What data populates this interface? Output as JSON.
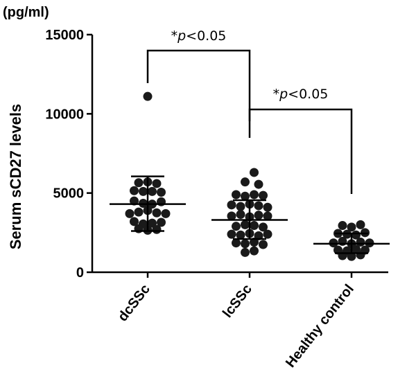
{
  "chart_data": {
    "type": "scatter",
    "unit_label": "(pg/ml)",
    "ylabel": "Serum sCD27  levels",
    "xlabel": "",
    "ylim": [
      0,
      15000
    ],
    "yticks": [
      0,
      5000,
      10000,
      15000
    ],
    "ytick_labels": [
      "0",
      "5000",
      "10000",
      "15000"
    ],
    "categories": [
      "dcSSc",
      "lcSSc",
      "Healthy control"
    ],
    "groups": [
      {
        "name": "dcSSc",
        "mean": 4300,
        "sd_upper": 6050,
        "sd_lower": 2600,
        "points": [
          {
            "offset": 0,
            "value": 11100
          },
          {
            "offset": -1,
            "value": 5650
          },
          {
            "offset": 0,
            "value": 5700
          },
          {
            "offset": 1,
            "value": 5600
          },
          {
            "offset": -1.5,
            "value": 5150
          },
          {
            "offset": -0.5,
            "value": 5100
          },
          {
            "offset": 0.5,
            "value": 5100
          },
          {
            "offset": 1.5,
            "value": 5050
          },
          {
            "offset": -1.5,
            "value": 4500
          },
          {
            "offset": -0.5,
            "value": 4350
          },
          {
            "offset": 0.5,
            "value": 4300
          },
          {
            "offset": 1.5,
            "value": 4450
          },
          {
            "offset": -2,
            "value": 3700
          },
          {
            "offset": -1,
            "value": 3800
          },
          {
            "offset": 0,
            "value": 3900
          },
          {
            "offset": 1,
            "value": 3750
          },
          {
            "offset": 2,
            "value": 3700
          },
          {
            "offset": -1.5,
            "value": 3200
          },
          {
            "offset": -0.5,
            "value": 3050
          },
          {
            "offset": 0.5,
            "value": 3100
          },
          {
            "offset": 1.5,
            "value": 3150
          },
          {
            "offset": -1,
            "value": 2750
          },
          {
            "offset": 0,
            "value": 2650
          },
          {
            "offset": 1,
            "value": 2700
          }
        ]
      },
      {
        "name": "lcSSc",
        "mean": 3300,
        "sd_upper": 4550,
        "sd_lower": 2100,
        "points": [
          {
            "offset": 0.5,
            "value": 6300
          },
          {
            "offset": -0.5,
            "value": 5700
          },
          {
            "offset": 1,
            "value": 5550
          },
          {
            "offset": -1.5,
            "value": 4900
          },
          {
            "offset": -0.5,
            "value": 4800
          },
          {
            "offset": 0.5,
            "value": 4900
          },
          {
            "offset": 1.5,
            "value": 4850
          },
          {
            "offset": -2,
            "value": 4250
          },
          {
            "offset": -1,
            "value": 4150
          },
          {
            "offset": 0,
            "value": 4300
          },
          {
            "offset": 1,
            "value": 4200
          },
          {
            "offset": 2,
            "value": 4100
          },
          {
            "offset": -2,
            "value": 3550
          },
          {
            "offset": -1,
            "value": 3650
          },
          {
            "offset": 0,
            "value": 3500
          },
          {
            "offset": 1,
            "value": 3600
          },
          {
            "offset": 2,
            "value": 3550
          },
          {
            "offset": -1.5,
            "value": 2900
          },
          {
            "offset": -0.5,
            "value": 3000
          },
          {
            "offset": 0.5,
            "value": 2950
          },
          {
            "offset": 1.5,
            "value": 2850
          },
          {
            "offset": -2,
            "value": 2400
          },
          {
            "offset": -1,
            "value": 2350
          },
          {
            "offset": 0,
            "value": 2450
          },
          {
            "offset": 1,
            "value": 2300
          },
          {
            "offset": 2,
            "value": 2400
          },
          {
            "offset": -1.5,
            "value": 1850
          },
          {
            "offset": -0.5,
            "value": 1800
          },
          {
            "offset": 0.5,
            "value": 1900
          },
          {
            "offset": 1.5,
            "value": 1750
          },
          {
            "offset": -0.5,
            "value": 1250
          },
          {
            "offset": 0.5,
            "value": 1350
          }
        ]
      },
      {
        "name": "Healthy control",
        "mean": 1800,
        "sd_upper": 2450,
        "sd_lower": 1200,
        "points": [
          {
            "offset": -1,
            "value": 2950
          },
          {
            "offset": 0,
            "value": 2850
          },
          {
            "offset": 1,
            "value": 3000
          },
          {
            "offset": -1.5,
            "value": 2450
          },
          {
            "offset": -0.5,
            "value": 2400
          },
          {
            "offset": 0.5,
            "value": 2350
          },
          {
            "offset": 1.5,
            "value": 2500
          },
          {
            "offset": -2,
            "value": 1850
          },
          {
            "offset": -1,
            "value": 1950
          },
          {
            "offset": 0,
            "value": 1800
          },
          {
            "offset": 1,
            "value": 1900
          },
          {
            "offset": 2,
            "value": 1850
          },
          {
            "offset": -1.5,
            "value": 1400
          },
          {
            "offset": -0.5,
            "value": 1350
          },
          {
            "offset": 0.5,
            "value": 1450
          },
          {
            "offset": 1.5,
            "value": 1400
          },
          {
            "offset": -1,
            "value": 1050
          },
          {
            "offset": 0,
            "value": 1000
          },
          {
            "offset": 1,
            "value": 1100
          }
        ]
      }
    ],
    "annotations": [
      {
        "from": "dcSSc",
        "to": "lcSSc",
        "prefix": "*",
        "italic": "p",
        "suffix": "<0.05",
        "level": "high"
      },
      {
        "from": "lcSSc",
        "to": "Healthy control",
        "prefix": "*",
        "italic": "p",
        "suffix": "<0.05",
        "level": "low"
      }
    ],
    "grid": false,
    "legend": "none"
  }
}
